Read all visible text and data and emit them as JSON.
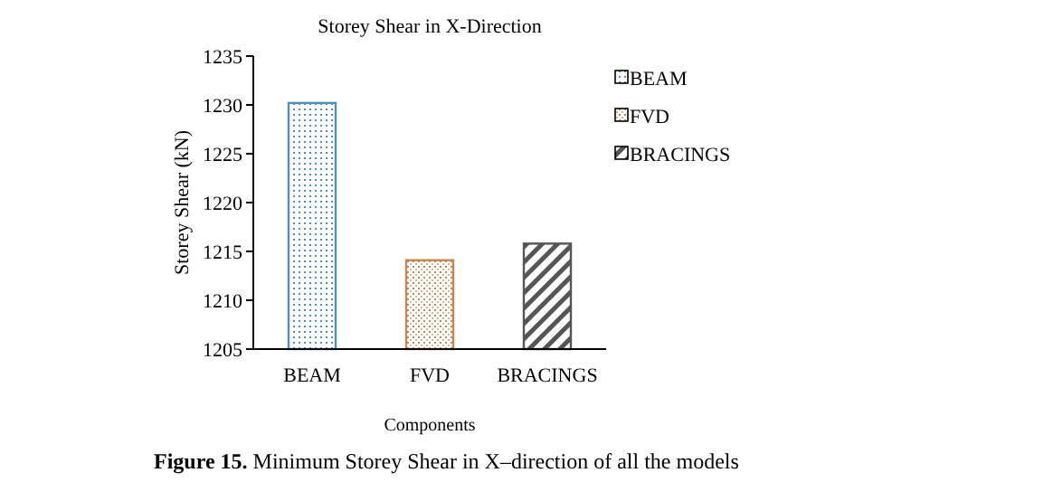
{
  "chart_data": {
    "type": "bar",
    "title": "Storey Shear in X-Direction",
    "xlabel": "Components",
    "ylabel": "Storey Shear (kN)",
    "categories": [
      "BEAM",
      "FVD",
      "BRACINGS"
    ],
    "series": [
      {
        "name": "BEAM",
        "color": "#4f8fb8",
        "values": [
          1230.2,
          null,
          null
        ]
      },
      {
        "name": "FVD",
        "color": "#c9864f",
        "values": [
          null,
          1214.1,
          null
        ]
      },
      {
        "name": "BRACINGS",
        "color": "#555555",
        "values": [
          null,
          null,
          1215.8
        ]
      }
    ],
    "ylim": [
      1205,
      1235
    ],
    "yticks": [
      1205,
      1210,
      1215,
      1220,
      1225,
      1230,
      1235
    ],
    "grid": false,
    "legend": "right",
    "annotations": [
      "Figure 15. Minimum Storey Shear in X–direction of all the models"
    ]
  }
}
